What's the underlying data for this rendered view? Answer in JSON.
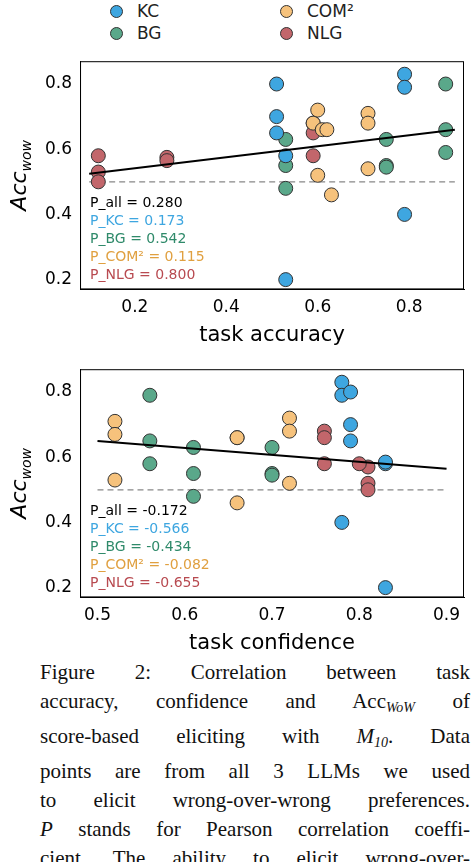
{
  "chart_data": [
    {
      "type": "scatter",
      "legend": "top",
      "xlabel": "task accuracy",
      "ylabel": {
        "text": "Acc",
        "subscript": "wow"
      },
      "xlim": [
        0.08,
        0.92
      ],
      "xticks": [
        0.2,
        0.4,
        0.6,
        0.8
      ],
      "ylim": [
        0.17,
        0.87
      ],
      "yticks": [
        0.2,
        0.4,
        0.6,
        0.8
      ],
      "grid": false,
      "marker": "circle",
      "series": [
        {
          "name": "KC",
          "color": "#3ea6e0",
          "x": [
            0.51,
            0.51,
            0.51,
            0.53,
            0.53,
            0.79,
            0.79,
            0.79
          ],
          "values": [
            0.8,
            0.7,
            0.65,
            0.58,
            0.2,
            0.83,
            0.79,
            0.4
          ]
        },
        {
          "name": "BG",
          "color": "#5aa88a",
          "x": [
            0.53,
            0.53,
            0.53,
            0.75,
            0.75,
            0.75,
            0.88,
            0.88,
            0.88
          ],
          "values": [
            0.63,
            0.55,
            0.48,
            0.63,
            0.55,
            0.545,
            0.8,
            0.66,
            0.59
          ]
        },
        {
          "name": "COM²",
          "color": "#f6c27c",
          "x": [
            0.59,
            0.6,
            0.61,
            0.62,
            0.63,
            0.6,
            0.71,
            0.71,
            0.71
          ],
          "values": [
            0.68,
            0.72,
            0.66,
            0.66,
            0.46,
            0.52,
            0.71,
            0.68,
            0.54
          ]
        },
        {
          "name": "NLG",
          "color": "#c2666b",
          "x": [
            0.12,
            0.12,
            0.12,
            0.27,
            0.27,
            0.59,
            0.59,
            0.59
          ],
          "values": [
            0.58,
            0.53,
            0.5,
            0.575,
            0.565,
            0.68,
            0.65,
            0.58
          ]
        }
      ],
      "trend": {
        "x": [
          0.1,
          0.9
        ],
        "values": [
          0.525,
          0.66
        ],
        "color": "#000000",
        "line_style": "solid"
      },
      "reference_line": {
        "x": [
          0.1,
          0.9
        ],
        "values": [
          0.5,
          0.5
        ],
        "color": "#888888",
        "line_style": "dashed"
      },
      "annotations": [
        {
          "text": "P_all = 0.280",
          "color": "#000000"
        },
        {
          "text": "P_KC = 0.173",
          "color": "#3ea6e0"
        },
        {
          "text": "P_BG = 0.542",
          "color": "#2f8a6a"
        },
        {
          "text": "P_COM² = 0.115",
          "color": "#e0a040"
        },
        {
          "text": "P_NLG = 0.800",
          "color": "#b84a50"
        }
      ]
    },
    {
      "type": "scatter",
      "xlabel": "task confidence",
      "ylabel": {
        "text": "Acc",
        "subscript": "wow"
      },
      "xlim": [
        0.48,
        0.92
      ],
      "xticks": [
        0.5,
        0.6,
        0.7,
        0.8,
        0.9
      ],
      "ylim": [
        0.17,
        0.87
      ],
      "yticks": [
        0.2,
        0.4,
        0.6,
        0.8
      ],
      "grid": false,
      "marker": "circle",
      "series": [
        {
          "name": "KC",
          "color": "#3ea6e0",
          "x": [
            0.78,
            0.78,
            0.79,
            0.79,
            0.79,
            0.78,
            0.83,
            0.83,
            0.83
          ],
          "values": [
            0.83,
            0.79,
            0.8,
            0.7,
            0.65,
            0.4,
            0.58,
            0.585,
            0.2
          ]
        },
        {
          "name": "BG",
          "color": "#5aa88a",
          "x": [
            0.56,
            0.56,
            0.56,
            0.61,
            0.61,
            0.61,
            0.7,
            0.7,
            0.7
          ],
          "values": [
            0.79,
            0.65,
            0.58,
            0.63,
            0.55,
            0.48,
            0.63,
            0.55,
            0.545
          ]
        },
        {
          "name": "COM²",
          "color": "#f6c27c",
          "x": [
            0.52,
            0.52,
            0.52,
            0.66,
            0.66,
            0.66,
            0.72,
            0.72,
            0.72
          ],
          "values": [
            0.71,
            0.67,
            0.53,
            0.66,
            0.66,
            0.46,
            0.72,
            0.68,
            0.52
          ]
        },
        {
          "name": "NLG",
          "color": "#c2666b",
          "x": [
            0.76,
            0.76,
            0.76,
            0.81,
            0.8,
            0.81,
            0.81
          ],
          "values": [
            0.68,
            0.66,
            0.58,
            0.57,
            0.58,
            0.52,
            0.5
          ]
        }
      ],
      "trend": {
        "x": [
          0.5,
          0.9
        ],
        "values": [
          0.65,
          0.565
        ],
        "color": "#000000",
        "line_style": "solid"
      },
      "reference_line": {
        "x": [
          0.5,
          0.9
        ],
        "values": [
          0.5,
          0.5
        ],
        "color": "#888888",
        "line_style": "dashed"
      },
      "annotations": [
        {
          "text": "P_all = -0.172",
          "color": "#000000"
        },
        {
          "text": "P_KC = -0.566",
          "color": "#3ea6e0"
        },
        {
          "text": "P_BG = -0.434",
          "color": "#2f8a6a"
        },
        {
          "text": "P_COM² = -0.082",
          "color": "#e0a040"
        },
        {
          "text": "P_NLG = -0.655",
          "color": "#b84a50"
        }
      ]
    }
  ],
  "caption": [
    [
      {
        "text": "Figure 2: Correlation between task"
      }
    ],
    [
      {
        "text": "accuracy, confidence and Acc"
      },
      {
        "text": "WoW",
        "style": "sub"
      },
      {
        "text": " of"
      }
    ],
    [
      {
        "text": "score-based eliciting with "
      },
      {
        "text": "M",
        "style": "italic"
      },
      {
        "text": "10",
        "style": "sub"
      },
      {
        "text": ". Data"
      }
    ],
    [
      {
        "text": "points are from all 3 LLMs we used"
      }
    ],
    [
      {
        "text": "to elicit wrong-over-wrong preferences."
      }
    ],
    [
      {
        "text": "P",
        "style": "italic"
      },
      {
        "text": " stands for Pearson correlation coeffi-"
      }
    ],
    [
      {
        "text": "cient. The ability to elicit wrong-over-"
      }
    ]
  ]
}
